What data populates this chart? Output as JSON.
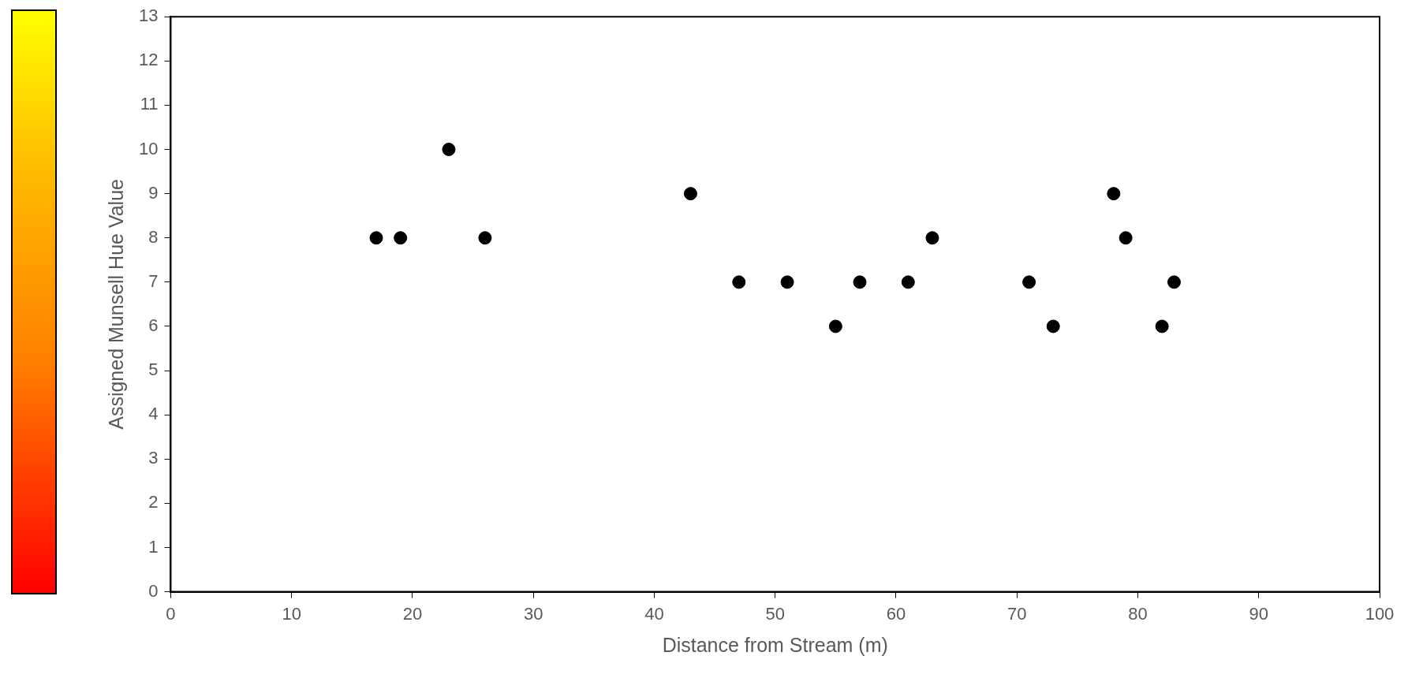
{
  "chart_data": {
    "type": "scatter",
    "xlabel": "Distance from Stream (m)",
    "ylabel": "Assigned Munsell Hue Value",
    "xlim": [
      0,
      100
    ],
    "xticks": [
      0,
      10,
      20,
      30,
      40,
      50,
      60,
      70,
      80,
      90,
      100
    ],
    "ylim": [
      0,
      13
    ],
    "yticks": [
      0,
      1,
      2,
      3,
      4,
      5,
      6,
      7,
      8,
      9,
      10,
      11,
      12,
      13
    ],
    "marker": "circle",
    "series": [
      {
        "color": "#000000",
        "x": [
          17,
          19,
          23,
          26,
          43,
          47,
          51,
          55,
          57,
          61,
          63,
          71,
          73,
          78,
          79,
          82,
          83
        ],
        "values": [
          8,
          8,
          10,
          8,
          9,
          7,
          7,
          6,
          7,
          7,
          8,
          7,
          6,
          9,
          8,
          6,
          7
        ]
      }
    ]
  }
}
